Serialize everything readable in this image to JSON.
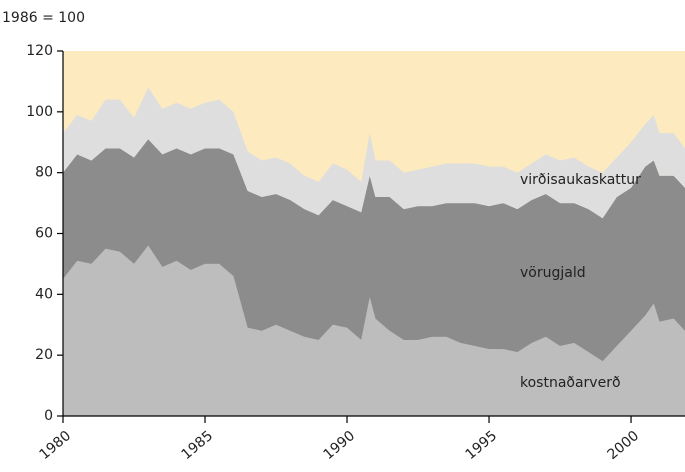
{
  "chart_data": {
    "type": "stacked_area",
    "y_label": "1986 = 100",
    "x": [
      1980,
      1980.5,
      1981,
      1981.5,
      1982,
      1982.5,
      1983,
      1983.5,
      1984,
      1984.5,
      1985,
      1985.5,
      1986,
      1986.5,
      1987,
      1987.5,
      1988,
      1988.5,
      1989,
      1989.5,
      1990,
      1990.5,
      1990.8,
      1991,
      1991.5,
      1992,
      1992.5,
      1993,
      1993.5,
      1994,
      1994.5,
      1995,
      1995.5,
      1996,
      1996.5,
      1997,
      1997.5,
      1998,
      1998.5,
      1999,
      1999.5,
      2000,
      2000.5,
      2000.8,
      2001,
      2001.5,
      2001.9
    ],
    "series": [
      {
        "name": "kostnaðarverð",
        "color": "#bdbdbd",
        "values": [
          45,
          51,
          50,
          55,
          54,
          50,
          56,
          49,
          51,
          48,
          50,
          50,
          46,
          29,
          28,
          30,
          28,
          26,
          25,
          30,
          29,
          25,
          39,
          32,
          28,
          25,
          25,
          26,
          26,
          24,
          23,
          22,
          22,
          21,
          24,
          26,
          23,
          24,
          21,
          18,
          23,
          28,
          33,
          37,
          31,
          32,
          28
        ]
      },
      {
        "name": "vörugjald",
        "color": "#8c8c8c",
        "values": [
          35,
          35,
          34,
          33,
          34,
          35,
          35,
          37,
          37,
          38,
          38,
          38,
          40,
          45,
          44,
          43,
          43,
          42,
          41,
          41,
          40,
          42,
          40,
          40,
          44,
          43,
          44,
          43,
          44,
          46,
          47,
          47,
          48,
          47,
          47,
          47,
          47,
          46,
          47,
          47,
          49,
          47,
          49,
          47,
          48,
          47,
          47
        ]
      },
      {
        "name": "virðisaukaskattur",
        "color": "#dedede",
        "values": [
          13,
          13,
          13,
          16,
          16,
          13,
          17,
          15,
          15,
          15,
          15,
          16,
          14,
          13,
          12,
          12,
          12,
          11,
          11,
          12,
          12,
          10,
          14,
          12,
          12,
          12,
          12,
          13,
          13,
          13,
          13,
          13,
          12,
          12,
          12,
          13,
          14,
          15,
          14,
          15,
          13,
          15,
          14,
          15,
          14,
          14,
          13
        ]
      }
    ],
    "background": "#fdebbf",
    "xlim": [
      1980,
      2001.9
    ],
    "xticks": [
      1980,
      1985,
      1990,
      1995,
      2000
    ],
    "ylim": [
      0,
      120
    ],
    "yticks": [
      0,
      20,
      40,
      60,
      80,
      100,
      120
    ],
    "grid": false
  }
}
